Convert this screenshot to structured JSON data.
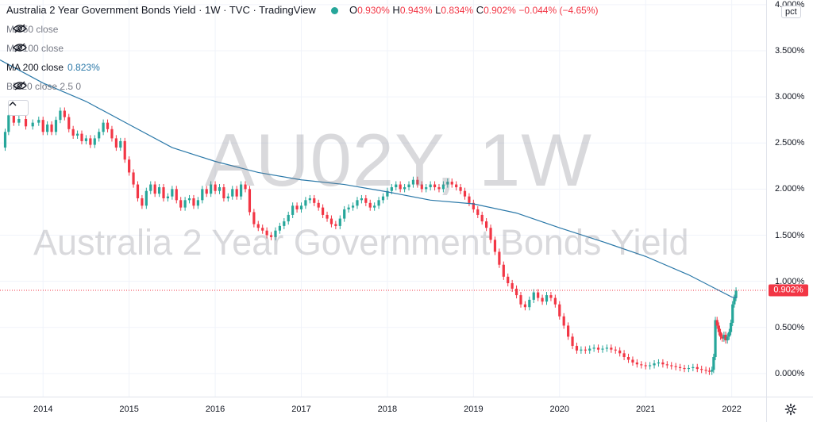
{
  "legend": {
    "title": "Australia 2 Year Government Bonds Yield · 1W · TVC · TradingView",
    "o_label": "O",
    "o_value": "0.930%",
    "h_label": "H",
    "h_value": "0.943%",
    "l_label": "L",
    "l_value": "0.834%",
    "c_label": "C",
    "c_value": "0.902%",
    "change": "−0.044% (−4.65%)",
    "status_color": "#26a69a"
  },
  "indicators": [
    {
      "label": "MA 50 close",
      "value": "",
      "hidden": true
    },
    {
      "label": "MA 100 close",
      "value": "",
      "hidden": true
    },
    {
      "label": "MA 200 close",
      "value": "0.823%",
      "hidden": false
    },
    {
      "label": "BB 20 close 2.5 0",
      "value": "",
      "hidden": true
    }
  ],
  "watermark": {
    "symbol": "AU02Y, 1W",
    "description": "Australia 2 Year Government Bonds Yield"
  },
  "y_axis": {
    "unit_button": "pct",
    "ticks": [
      "0.000%",
      "0.500%",
      "1.000%",
      "1.500%",
      "2.000%",
      "2.500%",
      "3.000%",
      "3.500%",
      "4.000%"
    ],
    "last_price": "0.902%"
  },
  "x_axis": {
    "ticks": [
      "2014",
      "2015",
      "2016",
      "2017",
      "2018",
      "2019",
      "2020",
      "2021",
      "2022"
    ]
  },
  "colors": {
    "up": "#26a69a",
    "down": "#f23645",
    "ma200": "#2a78a8",
    "grid": "#f0f3fa",
    "price_line": "#f23645"
  },
  "chart_data": {
    "type": "candlestick",
    "symbol": "AU02Y",
    "interval": "1W",
    "y_unit": "%",
    "ylim": [
      -0.25,
      4.05
    ],
    "xlim": [
      2013.5,
      2022.4
    ],
    "grid": true,
    "last_close": 0.902,
    "series": [
      {
        "name": "Australia 2 Year Government Bonds Yield",
        "kind": "close",
        "points": [
          [
            2013.52,
            2.45
          ],
          [
            2013.56,
            2.62
          ],
          [
            2013.6,
            2.8
          ],
          [
            2013.66,
            2.72
          ],
          [
            2013.72,
            2.76
          ],
          [
            2013.8,
            2.68
          ],
          [
            2013.88,
            2.72
          ],
          [
            2013.95,
            2.75
          ],
          [
            2014.0,
            2.62
          ],
          [
            2014.05,
            2.7
          ],
          [
            2014.1,
            2.62
          ],
          [
            2014.15,
            2.75
          ],
          [
            2014.2,
            2.85
          ],
          [
            2014.25,
            2.78
          ],
          [
            2014.3,
            2.65
          ],
          [
            2014.35,
            2.58
          ],
          [
            2014.4,
            2.6
          ],
          [
            2014.45,
            2.52
          ],
          [
            2014.5,
            2.55
          ],
          [
            2014.55,
            2.48
          ],
          [
            2014.6,
            2.55
          ],
          [
            2014.65,
            2.62
          ],
          [
            2014.7,
            2.72
          ],
          [
            2014.75,
            2.65
          ],
          [
            2014.8,
            2.55
          ],
          [
            2014.85,
            2.45
          ],
          [
            2014.9,
            2.52
          ],
          [
            2014.95,
            2.32
          ],
          [
            2015.0,
            2.18
          ],
          [
            2015.05,
            2.05
          ],
          [
            2015.1,
            1.9
          ],
          [
            2015.15,
            1.82
          ],
          [
            2015.2,
            1.98
          ],
          [
            2015.25,
            2.05
          ],
          [
            2015.3,
            1.95
          ],
          [
            2015.35,
            2.02
          ],
          [
            2015.4,
            1.9
          ],
          [
            2015.45,
            1.92
          ],
          [
            2015.5,
            2.0
          ],
          [
            2015.55,
            1.88
          ],
          [
            2015.6,
            1.8
          ],
          [
            2015.65,
            1.88
          ],
          [
            2015.7,
            1.9
          ],
          [
            2015.75,
            1.82
          ],
          [
            2015.8,
            1.88
          ],
          [
            2015.85,
            2.0
          ],
          [
            2015.9,
            1.95
          ],
          [
            2015.95,
            2.05
          ],
          [
            2016.0,
            1.98
          ],
          [
            2016.05,
            2.02
          ],
          [
            2016.1,
            1.9
          ],
          [
            2016.15,
            1.92
          ],
          [
            2016.2,
            2.0
          ],
          [
            2016.25,
            1.92
          ],
          [
            2016.3,
            2.05
          ],
          [
            2016.35,
            2.0
          ],
          [
            2016.4,
            1.75
          ],
          [
            2016.45,
            1.62
          ],
          [
            2016.5,
            1.58
          ],
          [
            2016.55,
            1.55
          ],
          [
            2016.6,
            1.5
          ],
          [
            2016.65,
            1.48
          ],
          [
            2016.7,
            1.55
          ],
          [
            2016.75,
            1.6
          ],
          [
            2016.8,
            1.65
          ],
          [
            2016.85,
            1.72
          ],
          [
            2016.9,
            1.82
          ],
          [
            2016.95,
            1.78
          ],
          [
            2017.0,
            1.82
          ],
          [
            2017.05,
            1.88
          ],
          [
            2017.1,
            1.9
          ],
          [
            2017.15,
            1.85
          ],
          [
            2017.2,
            1.8
          ],
          [
            2017.25,
            1.72
          ],
          [
            2017.3,
            1.68
          ],
          [
            2017.35,
            1.62
          ],
          [
            2017.4,
            1.6
          ],
          [
            2017.45,
            1.68
          ],
          [
            2017.5,
            1.78
          ],
          [
            2017.55,
            1.8
          ],
          [
            2017.6,
            1.82
          ],
          [
            2017.65,
            1.88
          ],
          [
            2017.7,
            1.9
          ],
          [
            2017.75,
            1.85
          ],
          [
            2017.8,
            1.8
          ],
          [
            2017.85,
            1.82
          ],
          [
            2017.9,
            1.88
          ],
          [
            2017.95,
            1.92
          ],
          [
            2018.0,
            1.98
          ],
          [
            2018.05,
            2.02
          ],
          [
            2018.1,
            2.05
          ],
          [
            2018.15,
            2.0
          ],
          [
            2018.2,
            2.02
          ],
          [
            2018.25,
            2.05
          ],
          [
            2018.3,
            2.1
          ],
          [
            2018.35,
            2.05
          ],
          [
            2018.4,
            2.0
          ],
          [
            2018.45,
            2.02
          ],
          [
            2018.5,
            2.05
          ],
          [
            2018.55,
            2.02
          ],
          [
            2018.6,
            2.0
          ],
          [
            2018.65,
            2.05
          ],
          [
            2018.7,
            2.08
          ],
          [
            2018.75,
            2.05
          ],
          [
            2018.8,
            2.02
          ],
          [
            2018.85,
            1.98
          ],
          [
            2018.9,
            1.92
          ],
          [
            2018.95,
            1.85
          ],
          [
            2019.0,
            1.78
          ],
          [
            2019.05,
            1.72
          ],
          [
            2019.1,
            1.65
          ],
          [
            2019.15,
            1.58
          ],
          [
            2019.2,
            1.45
          ],
          [
            2019.25,
            1.32
          ],
          [
            2019.3,
            1.18
          ],
          [
            2019.35,
            1.05
          ],
          [
            2019.4,
            0.98
          ],
          [
            2019.45,
            0.92
          ],
          [
            2019.5,
            0.85
          ],
          [
            2019.55,
            0.75
          ],
          [
            2019.6,
            0.72
          ],
          [
            2019.65,
            0.8
          ],
          [
            2019.7,
            0.88
          ],
          [
            2019.75,
            0.82
          ],
          [
            2019.8,
            0.78
          ],
          [
            2019.85,
            0.85
          ],
          [
            2019.9,
            0.82
          ],
          [
            2019.95,
            0.75
          ],
          [
            2020.0,
            0.62
          ],
          [
            2020.05,
            0.52
          ],
          [
            2020.1,
            0.4
          ],
          [
            2020.15,
            0.3
          ],
          [
            2020.2,
            0.25
          ],
          [
            2020.25,
            0.26
          ],
          [
            2020.3,
            0.25
          ],
          [
            2020.35,
            0.27
          ],
          [
            2020.4,
            0.28
          ],
          [
            2020.45,
            0.26
          ],
          [
            2020.5,
            0.27
          ],
          [
            2020.55,
            0.28
          ],
          [
            2020.6,
            0.26
          ],
          [
            2020.65,
            0.25
          ],
          [
            2020.7,
            0.22
          ],
          [
            2020.75,
            0.18
          ],
          [
            2020.8,
            0.15
          ],
          [
            2020.85,
            0.12
          ],
          [
            2020.9,
            0.1
          ],
          [
            2020.95,
            0.09
          ],
          [
            2021.0,
            0.08
          ],
          [
            2021.05,
            0.09
          ],
          [
            2021.1,
            0.11
          ],
          [
            2021.15,
            0.12
          ],
          [
            2021.2,
            0.1
          ],
          [
            2021.25,
            0.09
          ],
          [
            2021.3,
            0.08
          ],
          [
            2021.35,
            0.07
          ],
          [
            2021.4,
            0.06
          ],
          [
            2021.45,
            0.05
          ],
          [
            2021.5,
            0.06
          ],
          [
            2021.55,
            0.07
          ],
          [
            2021.6,
            0.05
          ],
          [
            2021.65,
            0.04
          ],
          [
            2021.7,
            0.03
          ],
          [
            2021.74,
            0.02
          ],
          [
            2021.77,
            0.04
          ],
          [
            2021.79,
            0.18
          ],
          [
            2021.81,
            0.58
          ],
          [
            2021.83,
            0.52
          ],
          [
            2021.85,
            0.45
          ],
          [
            2021.87,
            0.4
          ],
          [
            2021.89,
            0.38
          ],
          [
            2021.91,
            0.42
          ],
          [
            2021.93,
            0.36
          ],
          [
            2021.95,
            0.4
          ],
          [
            2021.97,
            0.45
          ],
          [
            2021.99,
            0.55
          ],
          [
            2022.01,
            0.75
          ],
          [
            2022.03,
            0.82
          ],
          [
            2022.05,
            0.9
          ]
        ]
      },
      {
        "name": "MA 200 close",
        "kind": "line",
        "points": [
          [
            2013.5,
            3.4
          ],
          [
            2014.0,
            3.15
          ],
          [
            2014.5,
            2.95
          ],
          [
            2015.0,
            2.7
          ],
          [
            2015.5,
            2.45
          ],
          [
            2016.0,
            2.3
          ],
          [
            2016.5,
            2.18
          ],
          [
            2017.0,
            2.1
          ],
          [
            2017.5,
            2.05
          ],
          [
            2018.0,
            1.97
          ],
          [
            2018.5,
            1.88
          ],
          [
            2019.0,
            1.84
          ],
          [
            2019.5,
            1.74
          ],
          [
            2020.0,
            1.58
          ],
          [
            2020.5,
            1.43
          ],
          [
            2021.0,
            1.27
          ],
          [
            2021.5,
            1.07
          ],
          [
            2022.0,
            0.83
          ],
          [
            2022.06,
            0.823
          ]
        ]
      }
    ]
  }
}
